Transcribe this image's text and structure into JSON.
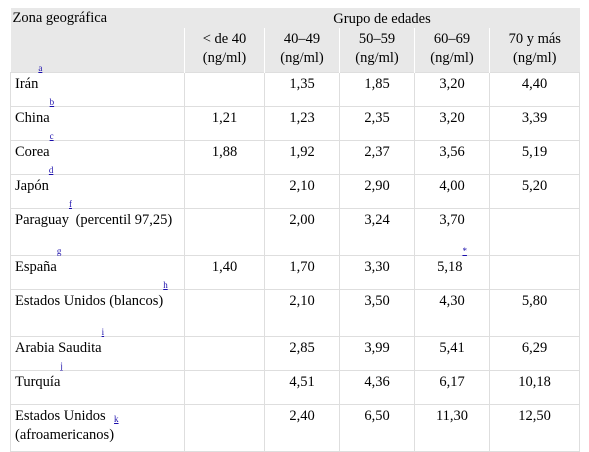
{
  "header": {
    "zona": "Zona geográfica",
    "grupo": "Grupo de edades",
    "cols": [
      {
        "range": "< de 40",
        "unit": "(ng/ml)"
      },
      {
        "range": "40–49",
        "unit": "(ng/ml)"
      },
      {
        "range": "50–59",
        "unit": "(ng/ml)"
      },
      {
        "range": "60–69",
        "unit": "(ng/ml)"
      },
      {
        "range": "70 y más",
        "unit": "(ng/ml)"
      }
    ]
  },
  "rows": [
    {
      "name": "Irán",
      "ref": "a",
      "suffix": "",
      "v": [
        "",
        "1,35",
        "1,85",
        "3,20",
        "4,40"
      ]
    },
    {
      "name": "China",
      "ref": "b",
      "suffix": "",
      "v": [
        "1,21",
        "1,23",
        "2,35",
        "3,20",
        "3,39"
      ]
    },
    {
      "name": "Corea",
      "ref": "c",
      "suffix": "",
      "v": [
        "1,88",
        "1,92",
        "2,37",
        "3,56",
        "5,19"
      ]
    },
    {
      "name": "Japón",
      "ref": "d",
      "suffix": "",
      "v": [
        "",
        "2,10",
        "2,90",
        "4,00",
        "5,20"
      ]
    },
    {
      "name": "Paraguay",
      "ref": "f",
      "suffix": " (percentil 97,25)",
      "v": [
        "",
        "2,00",
        "3,24",
        "3,70",
        ""
      ]
    },
    {
      "name": "España",
      "ref": "g",
      "suffix": "",
      "v": [
        "1,40",
        "1,70",
        "3,30",
        "5,18",
        ""
      ],
      "note4": "*"
    },
    {
      "name": "Estados Unidos (blancos)",
      "ref": "h",
      "suffix": "",
      "v": [
        "",
        "2,10",
        "3,50",
        "4,30",
        "5,80"
      ]
    },
    {
      "name": "Arabia Saudita",
      "ref": "i",
      "suffix": "",
      "v": [
        "",
        "2,85",
        "3,99",
        "5,41",
        "6,29"
      ]
    },
    {
      "name": "Turquía",
      "ref": "j",
      "suffix": "",
      "v": [
        "",
        "4,51",
        "4,36",
        "6,17",
        "10,18"
      ]
    },
    {
      "name": "Estados Unidos (afroamericanos)",
      "ref": "k",
      "suffix": "",
      "v": [
        "",
        "2,40",
        "6,50",
        "11,30",
        "12,50"
      ]
    }
  ]
}
